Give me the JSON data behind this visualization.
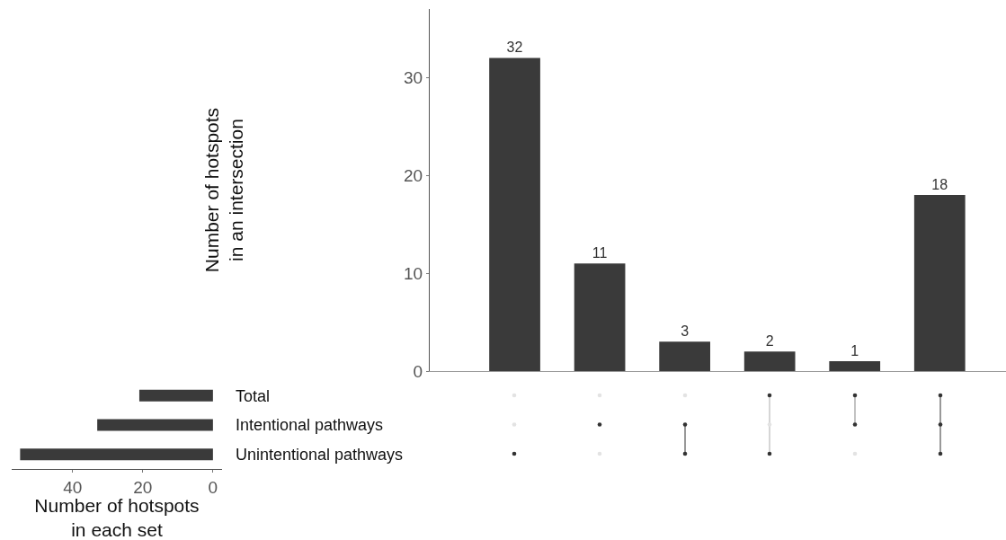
{
  "chart_data": [
    {
      "type": "bar",
      "ylabel": "Number of hotspots\nin an intersection",
      "categories": [
        null,
        null,
        null,
        null,
        null,
        null
      ],
      "values": [
        32,
        11,
        3,
        2,
        1,
        18
      ],
      "color": "#3a3a3a",
      "ylim": [
        0,
        37
      ],
      "yticks": [
        0,
        10,
        20,
        30
      ],
      "grid": false,
      "data_labels": true,
      "tick_labels": "y"
    },
    {
      "type": "bar",
      "orientation": "horizontal",
      "xlabel": "Number of hotspots\nin each set",
      "categories": [
        "Total",
        "Intentional pathways",
        "Unintentional pathways"
      ],
      "values": [
        21,
        33,
        55
      ],
      "color": "#3a3a3a",
      "xlim": [
        57.4,
        -2.6
      ],
      "xticks": [
        40,
        20,
        0
      ],
      "grid": false
    }
  ]
}
